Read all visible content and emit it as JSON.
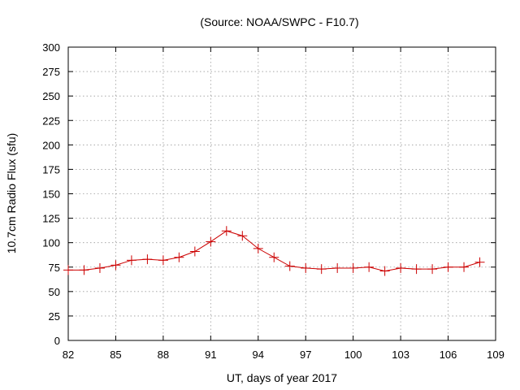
{
  "chart_data": {
    "type": "line",
    "title": "(Source: NOAA/SWPC - F10.7)",
    "xlabel": "UT, days of year 2017",
    "ylabel": "10.7cm Radio Flux (sfu)",
    "xlim": [
      82,
      109
    ],
    "ylim": [
      0,
      300
    ],
    "xticks": [
      82,
      85,
      88,
      91,
      94,
      97,
      100,
      103,
      106,
      109
    ],
    "yticks": [
      0,
      25,
      50,
      75,
      100,
      125,
      150,
      175,
      200,
      225,
      250,
      275,
      300
    ],
    "grid": true,
    "series": [
      {
        "color": "#cc0000",
        "marker": "plus",
        "x": [
          82,
          83,
          84,
          85,
          86,
          87,
          88,
          89,
          90,
          91,
          92,
          93,
          94,
          95,
          96,
          97,
          98,
          99,
          100,
          101,
          102,
          103,
          104,
          105,
          106,
          107,
          108
        ],
        "y": [
          72,
          72,
          74,
          77,
          82,
          83,
          82,
          85,
          91,
          101,
          112,
          107,
          94,
          85,
          76,
          74,
          73,
          74,
          74,
          75,
          71,
          74,
          73,
          73,
          75,
          75,
          80
        ]
      }
    ]
  }
}
